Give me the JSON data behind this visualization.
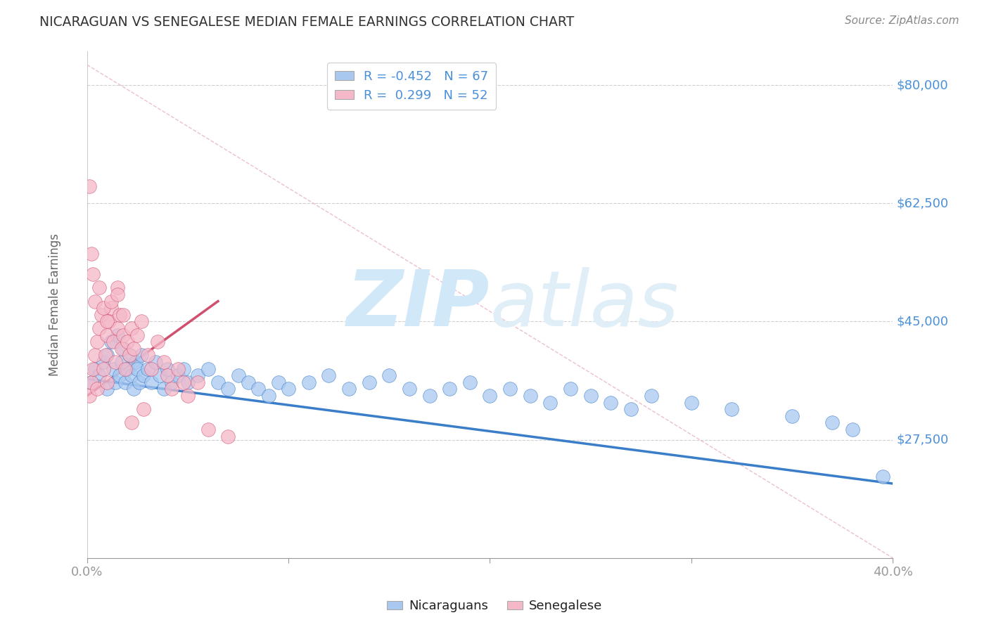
{
  "title": "NICARAGUAN VS SENEGALESE MEDIAN FEMALE EARNINGS CORRELATION CHART",
  "source": "Source: ZipAtlas.com",
  "ylabel": "Median Female Earnings",
  "xlim": [
    0.0,
    0.4
  ],
  "ylim": [
    10000,
    85000
  ],
  "yticks": [
    27500,
    45000,
    62500,
    80000
  ],
  "xticks": [
    0.0,
    0.1,
    0.2,
    0.3,
    0.4
  ],
  "xtick_labels": [
    "0.0%",
    "",
    "",
    "",
    "40.0%"
  ],
  "ytick_labels": [
    "$27,500",
    "$45,000",
    "$62,500",
    "$80,000"
  ],
  "legend_r1": "R = -0.452",
  "legend_n1": "N = 67",
  "legend_r2": "R =  0.299",
  "legend_n2": "N = 52",
  "color_blue": "#a8c8f0",
  "color_pink": "#f5b8c8",
  "color_blue_line": "#3a7dc9",
  "color_pink_line": "#d05070",
  "color_axis_label": "#4a90d9",
  "color_title": "#333333",
  "watermark_color": "#d0e8f8",
  "background_color": "#ffffff",
  "grid_color": "#d0d0d0",
  "blue_scatter_x": [
    0.002,
    0.004,
    0.006,
    0.008,
    0.01,
    0.01,
    0.012,
    0.013,
    0.014,
    0.015,
    0.016,
    0.017,
    0.018,
    0.019,
    0.02,
    0.021,
    0.022,
    0.023,
    0.024,
    0.025,
    0.026,
    0.027,
    0.028,
    0.03,
    0.032,
    0.034,
    0.036,
    0.038,
    0.04,
    0.042,
    0.045,
    0.048,
    0.05,
    0.055,
    0.06,
    0.065,
    0.07,
    0.075,
    0.08,
    0.085,
    0.09,
    0.095,
    0.1,
    0.11,
    0.12,
    0.13,
    0.14,
    0.15,
    0.16,
    0.17,
    0.18,
    0.19,
    0.2,
    0.21,
    0.22,
    0.23,
    0.24,
    0.25,
    0.26,
    0.27,
    0.28,
    0.3,
    0.32,
    0.35,
    0.37,
    0.38,
    0.395
  ],
  "blue_scatter_y": [
    36000,
    38000,
    37000,
    39000,
    40000,
    35000,
    42000,
    38000,
    36000,
    43000,
    37000,
    39000,
    41000,
    36000,
    38000,
    40000,
    37000,
    35000,
    39000,
    38000,
    36000,
    40000,
    37000,
    38000,
    36000,
    39000,
    37000,
    35000,
    38000,
    36000,
    37000,
    38000,
    36000,
    37000,
    38000,
    36000,
    35000,
    37000,
    36000,
    35000,
    34000,
    36000,
    35000,
    36000,
    37000,
    35000,
    36000,
    37000,
    35000,
    34000,
    35000,
    36000,
    34000,
    35000,
    34000,
    33000,
    35000,
    34000,
    33000,
    32000,
    34000,
    33000,
    32000,
    31000,
    30000,
    29000,
    22000
  ],
  "pink_scatter_x": [
    0.001,
    0.002,
    0.003,
    0.004,
    0.005,
    0.005,
    0.006,
    0.007,
    0.008,
    0.009,
    0.01,
    0.01,
    0.011,
    0.012,
    0.013,
    0.014,
    0.015,
    0.015,
    0.016,
    0.017,
    0.018,
    0.019,
    0.02,
    0.021,
    0.022,
    0.023,
    0.025,
    0.027,
    0.03,
    0.032,
    0.035,
    0.038,
    0.04,
    0.042,
    0.045,
    0.048,
    0.05,
    0.055,
    0.06,
    0.07,
    0.001,
    0.002,
    0.003,
    0.004,
    0.006,
    0.008,
    0.01,
    0.012,
    0.015,
    0.018,
    0.022,
    0.028
  ],
  "pink_scatter_y": [
    34000,
    36000,
    38000,
    40000,
    42000,
    35000,
    44000,
    46000,
    38000,
    40000,
    43000,
    36000,
    45000,
    47000,
    42000,
    39000,
    44000,
    50000,
    46000,
    41000,
    43000,
    38000,
    42000,
    40000,
    44000,
    41000,
    43000,
    45000,
    40000,
    38000,
    42000,
    39000,
    37000,
    35000,
    38000,
    36000,
    34000,
    36000,
    29000,
    28000,
    65000,
    55000,
    52000,
    48000,
    50000,
    47000,
    45000,
    48000,
    49000,
    46000,
    30000,
    32000
  ],
  "blue_trend_x": [
    0.0,
    0.4
  ],
  "blue_trend_y": [
    36500,
    21000
  ],
  "pink_trend_x": [
    0.0,
    0.065
  ],
  "pink_trend_y": [
    34000,
    48000
  ],
  "ref_line_x": [
    0.0,
    0.4
  ],
  "ref_line_y": [
    83000,
    10000
  ]
}
